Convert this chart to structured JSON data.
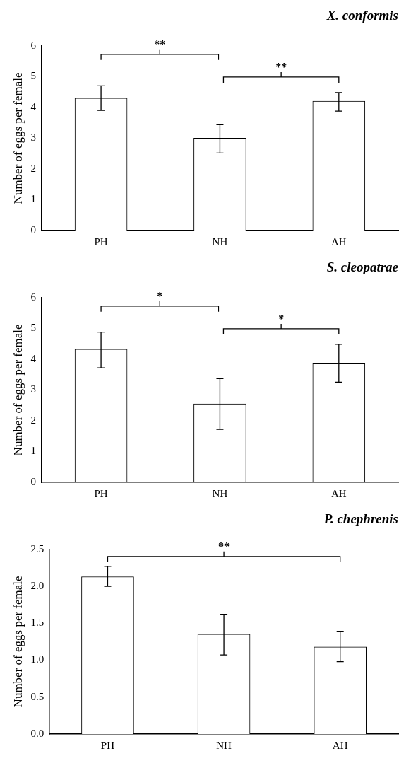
{
  "chart_data": [
    {
      "type": "bar",
      "title": "X. conformis",
      "ylabel": "Number of eggs per female",
      "categories": [
        "PH",
        "NH",
        "AH"
      ],
      "values": [
        4.3,
        3.0,
        4.2
      ],
      "errors": [
        [
          3.9,
          4.7
        ],
        [
          2.52,
          3.44
        ],
        [
          3.88,
          4.48
        ]
      ],
      "color": "#ffffff",
      "ylim": [
        0,
        6
      ],
      "yticks": [
        0,
        1,
        2,
        3,
        4,
        5,
        6
      ],
      "grid": false,
      "annotations": [
        "**",
        "**"
      ]
    },
    {
      "type": "bar",
      "title": "S. cleopatrae",
      "ylabel": "Number of eggs per female",
      "categories": [
        "PH",
        "NH",
        "AH"
      ],
      "values": [
        4.32,
        2.55,
        3.85
      ],
      "errors": [
        [
          3.72,
          4.88
        ],
        [
          1.72,
          3.37
        ],
        [
          3.25,
          4.48
        ]
      ],
      "color": "#ffffff",
      "ylim": [
        0,
        6
      ],
      "yticks": [
        0,
        1,
        2,
        3,
        4,
        5,
        6
      ],
      "grid": false,
      "annotations": [
        "*",
        "*"
      ]
    },
    {
      "type": "bar",
      "title": "P. chephrenis",
      "ylabel": "Number of eggs per female",
      "categories": [
        "PH",
        "NH",
        "AH"
      ],
      "values": [
        2.13,
        1.35,
        1.18
      ],
      "errors": [
        [
          2.0,
          2.27
        ],
        [
          1.07,
          1.62
        ],
        [
          0.98,
          1.39
        ]
      ],
      "color": "#ffffff",
      "ylim": [
        0,
        2.5
      ],
      "yticks": [
        {
          "value": 0,
          "label": "0.0"
        },
        {
          "value": 0.5,
          "label": "0.5"
        },
        {
          "value": 1,
          "label": "1.0"
        },
        {
          "value": 1.5,
          "label": "1.5"
        },
        {
          "value": 2,
          "label": "2.0"
        },
        {
          "value": 2.5,
          "label": "2.5"
        }
      ],
      "grid": false,
      "annotations": [
        "**"
      ]
    }
  ]
}
